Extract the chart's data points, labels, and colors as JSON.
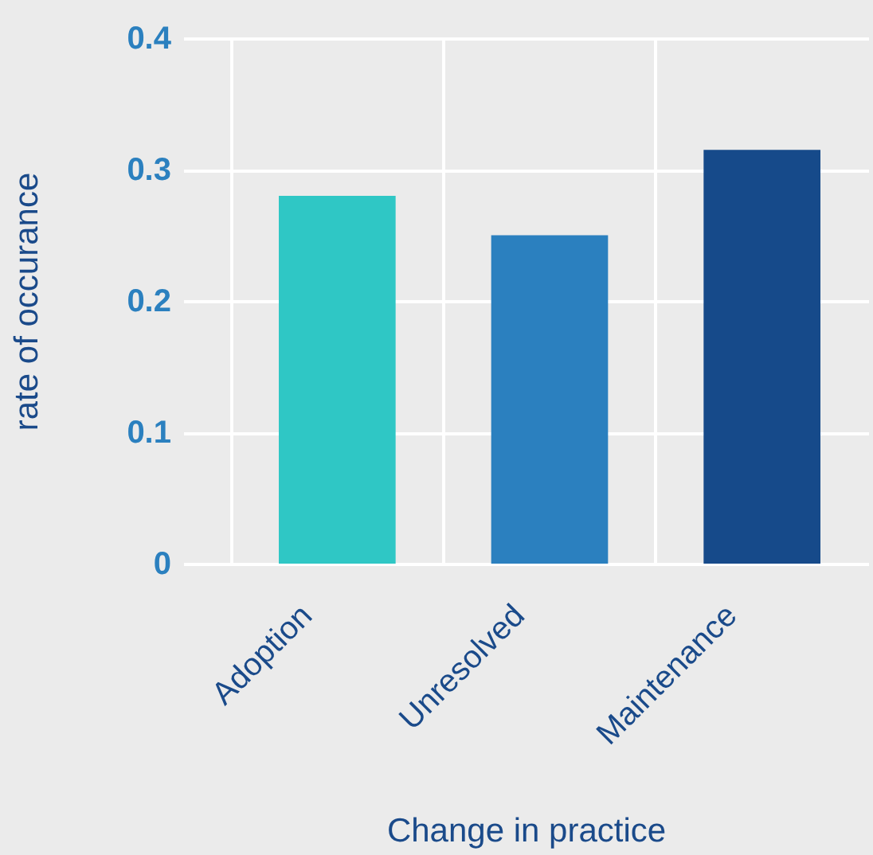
{
  "chart_data": {
    "type": "bar",
    "xlabel": "Change in practice",
    "ylabel": "rate of occurance",
    "categories": [
      "Adoption",
      "Unresolved",
      "Maintenance"
    ],
    "values": [
      0.28,
      0.25,
      0.315
    ],
    "colors": [
      "#2fc7c5",
      "#2b80bf",
      "#164a8a"
    ],
    "ylim": [
      0,
      0.4
    ],
    "yticks": [
      0,
      0.1,
      0.2,
      0.3,
      0.4
    ],
    "grid": true
  }
}
